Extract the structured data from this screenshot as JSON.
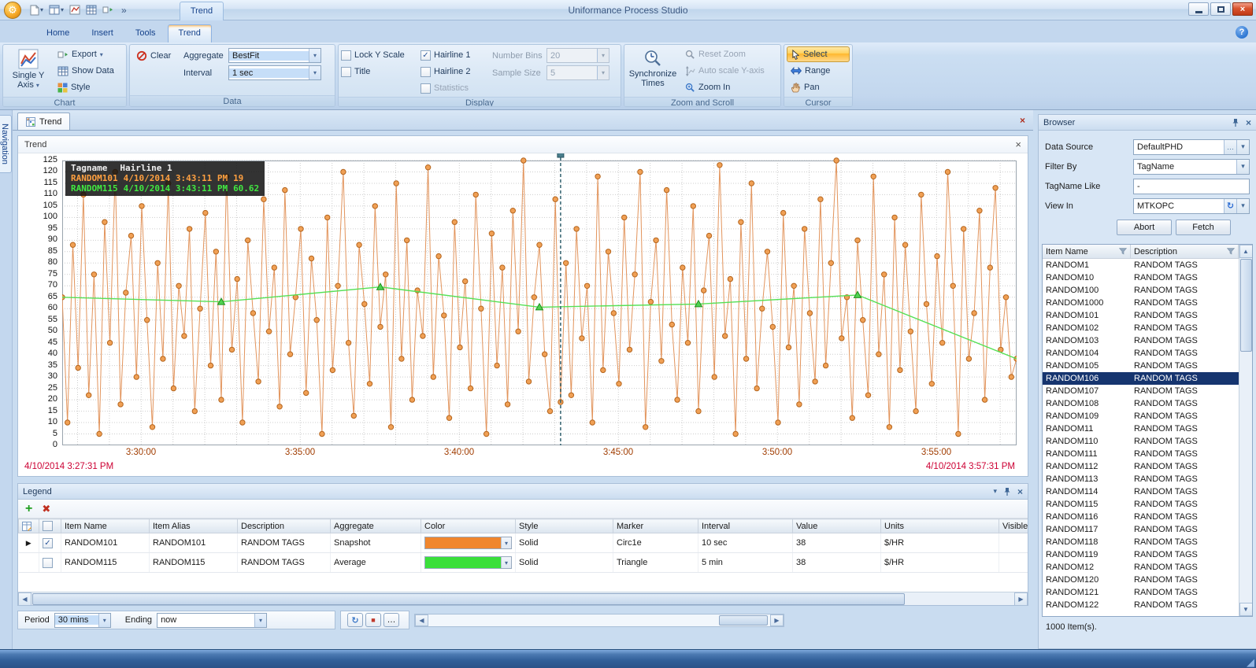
{
  "window": {
    "title": "Uniformance Process Studio",
    "contextual_tab_header": "Trend"
  },
  "icons": {
    "gear": "⚙",
    "help": "?",
    "dropdown": "▾",
    "overflow": "»",
    "left_arrow": "◀",
    "right_arrow": "▶",
    "up_arrow": "▲",
    "down_arrow": "▼",
    "close": "×",
    "add": "+",
    "delete": "✖",
    "refresh": "↻",
    "ellipsis": "…",
    "stop": "■",
    "expand_row": "▶",
    "check": "✓",
    "grip": "◢"
  },
  "ribbon": {
    "tabs": [
      {
        "label": "Home",
        "active": false
      },
      {
        "label": "Insert",
        "active": false
      },
      {
        "label": "Tools",
        "active": false
      },
      {
        "label": "Trend",
        "active": true
      }
    ],
    "groups": {
      "chart": {
        "label": "Chart",
        "single_y_axis": "Single Y Axis",
        "export": "Export",
        "show_data": "Show Data",
        "style": "Style"
      },
      "data": {
        "label": "Data",
        "clear": "Clear",
        "aggregate_label": "Aggregate",
        "aggregate_value": "BestFit",
        "interval_label": "Interval",
        "interval_value": "1 sec"
      },
      "display": {
        "label": "Display",
        "lock_y_scale": "Lock Y Scale",
        "title_checkbox": "Title",
        "hairline1": "Hairline 1",
        "hairline2": "Hairline 2",
        "statistics": "Statistics",
        "number_bins_label": "Number Bins",
        "number_bins_value": "20",
        "sample_size_label": "Sample Size",
        "sample_size_value": "5"
      },
      "zoom": {
        "label": "Zoom and Scroll",
        "synchronize": "Synchronize Times",
        "reset_zoom": "Reset Zoom",
        "auto_scale": "Auto scale Y-axis",
        "zoom_in": "Zoom In"
      },
      "cursor": {
        "label": "Cursor",
        "select": "Select",
        "range": "Range",
        "pan": "Pan"
      }
    }
  },
  "navigation": {
    "label": "Navigation"
  },
  "document_tab": {
    "label": "Trend"
  },
  "trend": {
    "title": "Trend",
    "start_time_label": "4/10/2014 3:27:31 PM",
    "end_time_label": "4/10/2014 3:57:31 PM",
    "tooltip": {
      "header_col1": "Tagname",
      "header_col2": "Hairline 1",
      "rows": [
        {
          "tag": "RANDOM101",
          "time": "4/10/2014 3:43:11 PM",
          "value": "19"
        },
        {
          "tag": "RANDOM115",
          "time": "4/10/2014 3:43:11 PM",
          "value": "60.62"
        }
      ]
    }
  },
  "chart_data": {
    "type": "line",
    "title": "Trend",
    "x_axis": {
      "start": "4/10/2014 3:27:31 PM",
      "end": "4/10/2014 3:57:31 PM",
      "range_s": [
        0,
        1800
      ],
      "tick_labels": [
        "3:30:00",
        "3:35:00",
        "3:40:00",
        "3:45:00",
        "3:50:00",
        "3:55:00"
      ],
      "tick_offsets_s": [
        149,
        449,
        749,
        1049,
        1349,
        1649
      ],
      "minor_gridline_start_s": 29,
      "minor_gridline_step_s": 60
    },
    "y_axis": {
      "min": 0,
      "max": 125,
      "step": 5
    },
    "hairline": {
      "label": "Hairline 1",
      "offset_s": 940,
      "time": "4/10/2014 3:43:11 PM"
    },
    "series": [
      {
        "name": "RANDOM101",
        "aggregate": "Snapshot",
        "interval_s": 10,
        "marker": "circle",
        "line_color": "#E2945C",
        "marker_fill": "#F0A055",
        "marker_stroke": "#B5651D",
        "values": [
          65,
          10,
          88,
          34,
          110,
          22,
          75,
          5,
          98,
          45,
          120,
          18,
          67,
          92,
          30,
          105,
          55,
          8,
          80,
          38,
          115,
          25,
          70,
          48,
          95,
          15,
          60,
          102,
          35,
          85,
          20,
          118,
          42,
          73,
          10,
          90,
          58,
          28,
          108,
          50,
          78,
          17,
          112,
          40,
          65,
          95,
          23,
          82,
          55,
          5,
          100,
          33,
          70,
          120,
          45,
          13,
          88,
          62,
          27,
          105,
          52,
          75,
          8,
          115,
          38,
          90,
          20,
          68,
          48,
          122,
          30,
          83,
          57,
          12,
          98,
          43,
          72,
          25,
          110,
          60,
          5,
          93,
          35,
          78,
          18,
          103,
          50,
          125,
          28,
          65,
          88,
          40,
          15,
          108,
          19,
          80,
          22,
          95,
          47,
          70,
          10,
          118,
          33,
          85,
          58,
          27,
          100,
          42,
          75,
          120,
          8,
          63,
          90,
          37,
          112,
          53,
          20,
          78,
          45,
          105,
          15,
          68,
          92,
          30,
          123,
          48,
          73,
          5,
          98,
          38,
          115,
          25,
          60,
          85,
          52,
          10,
          102,
          43,
          70,
          18,
          95,
          58,
          28,
          108,
          35,
          80,
          125,
          47,
          65,
          12,
          90,
          55,
          22,
          118,
          40,
          75,
          8,
          100,
          33,
          88,
          50,
          15,
          110,
          62,
          27,
          83,
          45,
          120,
          70,
          5,
          95,
          38,
          58,
          103,
          20,
          78,
          113,
          42,
          65,
          30,
          38
        ]
      },
      {
        "name": "RANDOM115",
        "aggregate": "Average",
        "interval": "5 min",
        "marker": "triangle",
        "line_color": "#55E055",
        "marker_fill": "#4FD34F",
        "marker_stroke": "#1F8F1F",
        "points": [
          {
            "t": 0,
            "v": 65
          },
          {
            "t": 300,
            "v": 63
          },
          {
            "t": 600,
            "v": 69.5
          },
          {
            "t": 900,
            "v": 60.62
          },
          {
            "t": 1200,
            "v": 62
          },
          {
            "t": 1500,
            "v": 66
          },
          {
            "t": 1800,
            "v": 38
          }
        ]
      }
    ]
  },
  "legend": {
    "title": "Legend",
    "columns": [
      "",
      "",
      "Item Name",
      "Item Alias",
      "Description",
      "Aggregate",
      "Color",
      "Style",
      "Marker",
      "Interval",
      "Value",
      "Units",
      "Visible"
    ],
    "rows": [
      {
        "expanded": true,
        "checked": true,
        "item_name": "RANDOM101",
        "item_alias": "RANDOM101",
        "description": "RANDOM TAGS",
        "aggregate": "Snapshot",
        "color": "#F0862D",
        "style": "Solid",
        "marker": "Circ1e",
        "interval": "10 sec",
        "value": "38",
        "units": "$/HR"
      },
      {
        "expanded": false,
        "checked": false,
        "item_name": "RANDOM115",
        "item_alias": "RANDOM115",
        "description": "RANDOM TAGS",
        "aggregate": "Average",
        "color": "#3ADF3A",
        "style": "Solid",
        "marker": "Triangle",
        "interval": "5 min",
        "value": "38",
        "units": "$/HR"
      }
    ]
  },
  "time_bar": {
    "period_label": "Period",
    "period_value": "30 mins",
    "ending_label": "Ending",
    "ending_value": "now"
  },
  "browser": {
    "title": "Browser",
    "data_source_label": "Data Source",
    "data_source_value": "DefaultPHD",
    "filter_by_label": "Filter By",
    "filter_by_value": "TagName",
    "tagname_like_label": "TagName Like",
    "tagname_like_value": "-",
    "view_in_label": "View In",
    "view_in_value": "MTKOPC",
    "abort_button": "Abort",
    "fetch_button": "Fetch",
    "grid": {
      "columns": [
        "Item Name",
        "Description"
      ],
      "selected_item": "RANDOM106",
      "description_value": "RANDOM TAGS",
      "item_names": [
        "RANDOM1",
        "RANDOM10",
        "RANDOM100",
        "RANDOM1000",
        "RANDOM101",
        "RANDOM102",
        "RANDOM103",
        "RANDOM104",
        "RANDOM105",
        "RANDOM106",
        "RANDOM107",
        "RANDOM108",
        "RANDOM109",
        "RANDOM11",
        "RANDOM110",
        "RANDOM111",
        "RANDOM112",
        "RANDOM113",
        "RANDOM114",
        "RANDOM115",
        "RANDOM116",
        "RANDOM117",
        "RANDOM118",
        "RANDOM119",
        "RANDOM12",
        "RANDOM120",
        "RANDOM121",
        "RANDOM122"
      ]
    },
    "count_label": "1000 Item(s)."
  }
}
